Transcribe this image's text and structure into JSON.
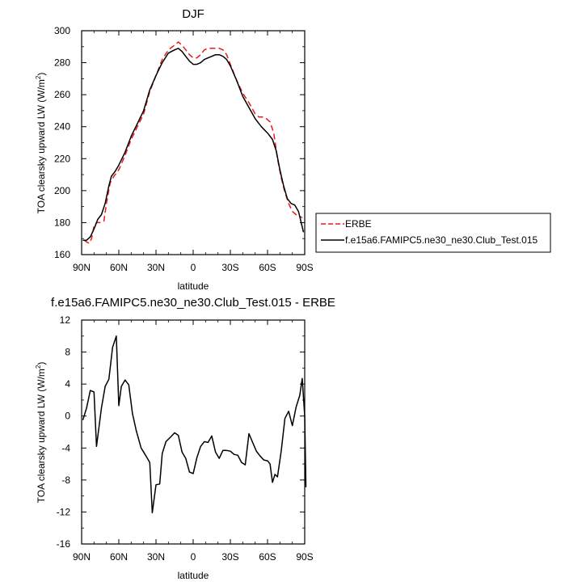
{
  "chart_data": [
    {
      "type": "line",
      "title": "DJF",
      "xlabel": "latitude",
      "ylabel": "TOA clearsky upward LW (W/m",
      "ylabel_sup": "2",
      "ylabel_tail": ")",
      "xlim": [
        90,
        -90
      ],
      "ylim": [
        160,
        300
      ],
      "x_ticks": [
        90,
        60,
        30,
        0,
        -30,
        -60,
        -90
      ],
      "x_tick_labels": [
        "90N",
        "60N",
        "30N",
        "0",
        "30S",
        "60S",
        "90S"
      ],
      "y_ticks": [
        160,
        180,
        200,
        220,
        240,
        260,
        280,
        300
      ],
      "y_tick_labels": [
        "160",
        "180",
        "200",
        "220",
        "240",
        "260",
        "280",
        "300"
      ],
      "legend": {
        "placement": "right",
        "entries": [
          "ERBE",
          "f.e15a6.FAMIPC5.ne30_ne30.Club_Test.015"
        ]
      },
      "series": [
        {
          "name": "ERBE",
          "color": "#e8191c",
          "dash": "dashed",
          "points": [
            [
              88,
              169
            ],
            [
              86,
              168
            ],
            [
              84,
              167
            ],
            [
              82,
              170
            ],
            [
              80,
              178
            ],
            [
              78,
              180
            ],
            [
              75,
              180
            ],
            [
              72,
              181
            ],
            [
              70,
              192
            ],
            [
              67,
              205
            ],
            [
              64,
              209
            ],
            [
              60,
              213
            ],
            [
              55,
              222
            ],
            [
              50,
              232
            ],
            [
              45,
              240
            ],
            [
              40,
              248
            ],
            [
              35,
              262
            ],
            [
              30,
              272
            ],
            [
              25,
              282
            ],
            [
              20,
              288
            ],
            [
              15,
              291
            ],
            [
              12,
              293
            ],
            [
              9,
              291
            ],
            [
              6,
              288
            ],
            [
              3,
              285
            ],
            [
              0,
              283
            ],
            [
              -3,
              283
            ],
            [
              -6,
              285
            ],
            [
              -9,
              288
            ],
            [
              -12,
              289
            ],
            [
              -15,
              289
            ],
            [
              -18,
              289
            ],
            [
              -21,
              289
            ],
            [
              -24,
              288
            ],
            [
              -27,
              285
            ],
            [
              -30,
              279
            ],
            [
              -35,
              269
            ],
            [
              -40,
              261
            ],
            [
              -45,
              255
            ],
            [
              -50,
              248
            ],
            [
              -53,
              246
            ],
            [
              -56,
              246
            ],
            [
              -59,
              245
            ],
            [
              -62,
              243
            ],
            [
              -65,
              236
            ],
            [
              -68,
              220
            ],
            [
              -71,
              208
            ],
            [
              -74,
              199
            ],
            [
              -77,
              192
            ],
            [
              -80,
              187
            ],
            [
              -83,
              185
            ],
            [
              -86,
              184
            ],
            [
              -88,
              183
            ]
          ]
        },
        {
          "name": "f.e15a6.FAMIPC5.ne30_ne30.Club_Test.015",
          "color": "#000000",
          "dash": "solid",
          "points": [
            [
              89,
              169
            ],
            [
              86,
              169
            ],
            [
              83,
              171
            ],
            [
              80,
              176
            ],
            [
              77,
              182
            ],
            [
              74,
              185
            ],
            [
              71,
              192
            ],
            [
              68,
              203
            ],
            [
              66,
              209
            ],
            [
              63,
              212
            ],
            [
              60,
              216
            ],
            [
              55,
              224
            ],
            [
              50,
              234
            ],
            [
              45,
              242
            ],
            [
              40,
              250
            ],
            [
              35,
              263
            ],
            [
              30,
              272
            ],
            [
              25,
              280
            ],
            [
              20,
              286
            ],
            [
              15,
              288
            ],
            [
              12,
              289
            ],
            [
              9,
              287
            ],
            [
              6,
              284
            ],
            [
              3,
              281
            ],
            [
              0,
              279
            ],
            [
              -3,
              279
            ],
            [
              -6,
              280
            ],
            [
              -9,
              282
            ],
            [
              -12,
              283
            ],
            [
              -15,
              284
            ],
            [
              -18,
              285
            ],
            [
              -21,
              285
            ],
            [
              -24,
              284
            ],
            [
              -27,
              282
            ],
            [
              -30,
              278
            ],
            [
              -35,
              269
            ],
            [
              -40,
              259
            ],
            [
              -45,
              252
            ],
            [
              -50,
              245
            ],
            [
              -55,
              240
            ],
            [
              -60,
              236
            ],
            [
              -64,
              232
            ],
            [
              -67,
              225
            ],
            [
              -70,
              213
            ],
            [
              -73,
              203
            ],
            [
              -76,
              195
            ],
            [
              -79,
              192
            ],
            [
              -82,
              191
            ],
            [
              -85,
              187
            ],
            [
              -89,
              174
            ]
          ]
        }
      ]
    },
    {
      "type": "line",
      "title": "f.e15a6.FAMIPC5.ne30_ne30.Club_Test.015 - ERBE",
      "xlabel": "latitude",
      "ylabel": "TOA clearsky upward LW (W/m",
      "ylabel_sup": "2",
      "ylabel_tail": ")",
      "xlim": [
        90,
        -90
      ],
      "ylim": [
        -16,
        12
      ],
      "x_ticks": [
        90,
        60,
        30,
        0,
        -30,
        -60,
        -90
      ],
      "x_tick_labels": [
        "90N",
        "60N",
        "30N",
        "0",
        "30S",
        "60S",
        "90S"
      ],
      "y_ticks": [
        -16,
        -12,
        -8,
        -4,
        0,
        4,
        8,
        12
      ],
      "y_tick_labels": [
        "-16",
        "-12",
        "-8",
        "-4",
        "0",
        "4",
        "8",
        "12"
      ],
      "series": [
        {
          "color": "#000000",
          "dash": "solid",
          "points": [
            [
              89,
              -0.5
            ],
            [
              86,
              1
            ],
            [
              83,
              3.2
            ],
            [
              80,
              3
            ],
            [
              78,
              -3.8
            ],
            [
              74,
              1
            ],
            [
              71,
              3.7
            ],
            [
              68,
              4.6
            ],
            [
              65,
              8.6
            ],
            [
              62,
              10
            ],
            [
              60,
              1.3
            ],
            [
              58,
              3.7
            ],
            [
              55,
              4.5
            ],
            [
              52,
              3.9
            ],
            [
              49,
              0.3
            ],
            [
              46,
              -1.8
            ],
            [
              42,
              -4
            ],
            [
              38,
              -5
            ],
            [
              35,
              -5.8
            ],
            [
              33,
              -12.1
            ],
            [
              30,
              -8.6
            ],
            [
              27,
              -8.5
            ],
            [
              25,
              -4.7
            ],
            [
              22,
              -3.2
            ],
            [
              18,
              -2.6
            ],
            [
              15,
              -2.1
            ],
            [
              12,
              -2.4
            ],
            [
              9,
              -4.5
            ],
            [
              6,
              -5.3
            ],
            [
              3,
              -7
            ],
            [
              0,
              -7.2
            ],
            [
              -3,
              -5.2
            ],
            [
              -6,
              -3.8
            ],
            [
              -9,
              -3.2
            ],
            [
              -12,
              -3.3
            ],
            [
              -15,
              -2.5
            ],
            [
              -18,
              -4.5
            ],
            [
              -21,
              -5.3
            ],
            [
              -24,
              -4.3
            ],
            [
              -27,
              -4.3
            ],
            [
              -30,
              -4.4
            ],
            [
              -33,
              -4.8
            ],
            [
              -36,
              -4.9
            ],
            [
              -39,
              -5.8
            ],
            [
              -42,
              -6.1
            ],
            [
              -45,
              -2.2
            ],
            [
              -48,
              -3.3
            ],
            [
              -51,
              -4.4
            ],
            [
              -54,
              -5
            ],
            [
              -57,
              -5.5
            ],
            [
              -60,
              -5.6
            ],
            [
              -62,
              -6
            ],
            [
              -64,
              -8.3
            ],
            [
              -66,
              -7.3
            ],
            [
              -68,
              -7.6
            ],
            [
              -71,
              -4.4
            ],
            [
              -74,
              -0.3
            ],
            [
              -77,
              0.6
            ],
            [
              -80,
              -1.2
            ],
            [
              -83,
              1.1
            ],
            [
              -86,
              2.6
            ],
            [
              -88,
              4.7
            ],
            [
              -90,
              0
            ],
            [
              -91,
              -8.9
            ]
          ]
        }
      ]
    }
  ]
}
